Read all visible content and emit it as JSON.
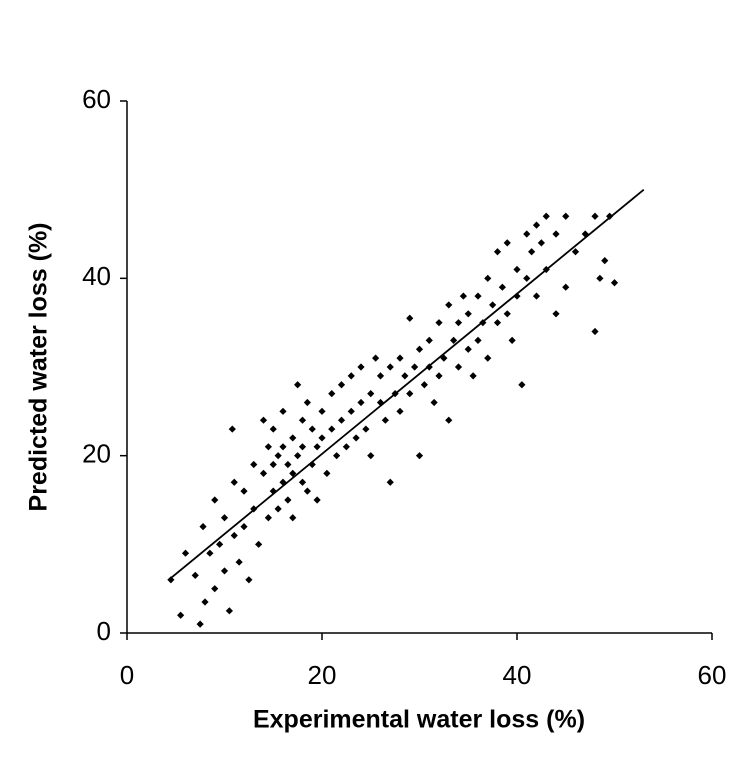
{
  "chart_data": {
    "type": "scatter",
    "x_label": "Experimental water loss (%)",
    "y_label": "Predicted water loss (%)",
    "xlim": [
      0,
      60
    ],
    "ylim": [
      0,
      60
    ],
    "xticks": [
      0,
      20,
      40,
      60
    ],
    "yticks": [
      0,
      20,
      40,
      60
    ],
    "grid": false,
    "series": [
      {
        "color": "#000000",
        "x": [
          4.5,
          5.5,
          6,
          7,
          7.5,
          7.8,
          8,
          8.5,
          9,
          9,
          9.5,
          10,
          10,
          10.5,
          10.8,
          11,
          11,
          11.5,
          12,
          12,
          12.5,
          13,
          13,
          13.5,
          14,
          14,
          14.5,
          14.5,
          15,
          15,
          15,
          15.5,
          15.5,
          16,
          16,
          16,
          16.5,
          16.5,
          17,
          17,
          17,
          17.5,
          17.5,
          18,
          18,
          18,
          18.5,
          18.5,
          19,
          19,
          19.5,
          19.5,
          20,
          20,
          20.5,
          21,
          21,
          21.5,
          22,
          22,
          22.5,
          23,
          23,
          23.5,
          24,
          24,
          24.5,
          25,
          25,
          25.5,
          26,
          26,
          26.5,
          27,
          27,
          27.5,
          28,
          28,
          28.5,
          29,
          29,
          29.5,
          30,
          30,
          30.5,
          31,
          31,
          31.5,
          32,
          32,
          32.5,
          33,
          33,
          33.5,
          34,
          34,
          34.5,
          35,
          35,
          35.5,
          36,
          36,
          36.5,
          37,
          37,
          37.5,
          38,
          38,
          38.5,
          39,
          39,
          39.5,
          40,
          40,
          40.5,
          41,
          41,
          41.5,
          42,
          42,
          42.5,
          43,
          43,
          44,
          44,
          45,
          45,
          46,
          47,
          48,
          48,
          48.5,
          49,
          49.5,
          50
        ],
        "values": [
          6,
          2,
          9,
          6.5,
          1,
          12,
          3.5,
          9,
          5,
          15,
          10,
          7,
          13,
          2.5,
          23,
          11,
          17,
          8,
          12,
          16,
          6,
          14,
          19,
          10,
          18,
          24,
          13,
          21,
          16,
          19,
          23,
          14,
          20,
          17,
          21,
          25,
          15,
          19,
          18,
          22,
          13,
          20,
          28,
          17,
          21,
          24,
          16,
          26,
          19,
          23,
          21,
          15,
          22,
          25,
          18,
          23,
          27,
          20,
          24,
          28,
          21,
          25,
          29,
          22,
          26,
          30,
          23,
          27,
          20,
          31,
          26,
          29,
          24,
          17,
          30,
          27,
          31,
          25,
          29,
          35.5,
          27,
          30,
          32,
          20,
          28,
          33,
          30,
          26,
          35,
          29,
          31,
          37,
          24,
          33,
          35,
          30,
          38,
          36,
          32,
          29,
          38,
          33,
          35,
          40,
          31,
          37,
          43,
          35,
          39,
          36,
          44,
          33,
          41,
          38,
          28,
          45,
          40,
          43,
          46,
          38,
          44,
          47,
          41,
          45,
          36,
          47,
          39,
          43,
          45,
          47,
          34,
          40,
          42,
          47,
          39.5
        ]
      }
    ],
    "fit_line": {
      "color": "#000000",
      "x": [
        4.5,
        53
      ],
      "values": [
        6.2,
        50
      ]
    }
  }
}
